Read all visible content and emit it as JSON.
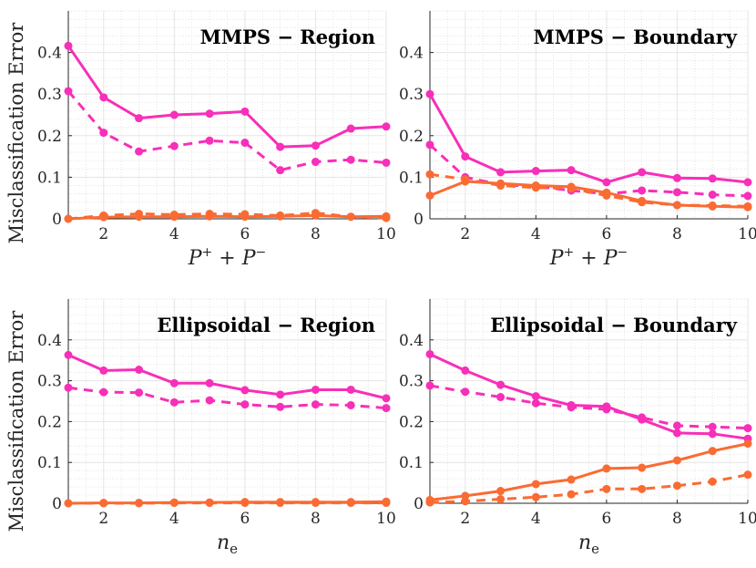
{
  "colors": {
    "pink": "#F72FB9",
    "orange": "#FA6B33",
    "axis": "#262626",
    "grid": "#d9d9d9"
  },
  "ylabel": "Misclassification Error",
  "chart_data": [
    {
      "type": "line",
      "title": "MMPS − Region",
      "xlabel": {
        "main": "P",
        "sup1": "+",
        "plus": " + ",
        "main2": "P",
        "sup2": "−"
      },
      "ylabel": "Misclassification Error",
      "x": [
        1,
        2,
        3,
        4,
        5,
        6,
        7,
        8,
        9,
        10
      ],
      "xticks": [
        "2",
        "4",
        "6",
        "8",
        "10"
      ],
      "yticks": [
        "0",
        "0.1",
        "0.2",
        "0.3",
        "0.4"
      ],
      "xlim": [
        1,
        10
      ],
      "ylim": [
        0,
        0.5
      ],
      "series": [
        {
          "name": "pink-solid",
          "color": "pink",
          "dashed": false,
          "values": [
            0.416,
            0.292,
            0.242,
            0.25,
            0.253,
            0.258,
            0.173,
            0.176,
            0.217,
            0.222
          ]
        },
        {
          "name": "pink-dashed",
          "color": "pink",
          "dashed": true,
          "values": [
            0.307,
            0.207,
            0.162,
            0.175,
            0.188,
            0.183,
            0.117,
            0.137,
            0.142,
            0.135
          ]
        },
        {
          "name": "orange-solid",
          "color": "orange",
          "dashed": false,
          "values": [
            0.0,
            0.004,
            0.005,
            0.005,
            0.006,
            0.005,
            0.006,
            0.008,
            0.005,
            0.006
          ]
        },
        {
          "name": "orange-dashed",
          "color": "orange",
          "dashed": true,
          "values": [
            0.0,
            0.008,
            0.012,
            0.01,
            0.012,
            0.011,
            0.008,
            0.014,
            0.005,
            0.002
          ]
        }
      ]
    },
    {
      "type": "line",
      "title": "MMPS − Boundary",
      "xlabel": {
        "main": "P",
        "sup1": "+",
        "plus": " + ",
        "main2": "P",
        "sup2": "−"
      },
      "ylabel": "",
      "x": [
        1,
        2,
        3,
        4,
        5,
        6,
        7,
        8,
        9,
        10
      ],
      "xticks": [
        "2",
        "4",
        "6",
        "8",
        "10"
      ],
      "yticks": [
        "0",
        "0.1",
        "0.2",
        "0.3",
        "0.4"
      ],
      "xlim": [
        1,
        10
      ],
      "ylim": [
        0,
        0.5
      ],
      "series": [
        {
          "name": "pink-solid",
          "color": "pink",
          "dashed": false,
          "values": [
            0.3,
            0.15,
            0.112,
            0.115,
            0.117,
            0.088,
            0.112,
            0.098,
            0.097,
            0.088
          ]
        },
        {
          "name": "pink-dashed",
          "color": "pink",
          "dashed": true,
          "values": [
            0.178,
            0.1,
            0.082,
            0.078,
            0.068,
            0.06,
            0.068,
            0.064,
            0.058,
            0.055
          ]
        },
        {
          "name": "orange-solid",
          "color": "orange",
          "dashed": false,
          "values": [
            0.056,
            0.09,
            0.085,
            0.08,
            0.077,
            0.063,
            0.043,
            0.033,
            0.03,
            0.028
          ]
        },
        {
          "name": "orange-dashed",
          "color": "orange",
          "dashed": true,
          "values": [
            0.107,
            0.095,
            0.08,
            0.075,
            0.073,
            0.056,
            0.04,
            0.033,
            0.032,
            0.03
          ]
        }
      ]
    },
    {
      "type": "line",
      "title": "Ellipsoidal − Region",
      "xlabel": {
        "main": "n",
        "sub": "e"
      },
      "ylabel": "Misclassification Error",
      "x": [
        1,
        2,
        3,
        4,
        5,
        6,
        7,
        8,
        9,
        10
      ],
      "xticks": [
        "2",
        "4",
        "6",
        "8",
        "10"
      ],
      "yticks": [
        "0",
        "0.1",
        "0.2",
        "0.3",
        "0.4"
      ],
      "xlim": [
        1,
        10
      ],
      "ylim": [
        0,
        0.5
      ],
      "series": [
        {
          "name": "pink-solid",
          "color": "pink",
          "dashed": false,
          "values": [
            0.363,
            0.325,
            0.327,
            0.294,
            0.294,
            0.277,
            0.266,
            0.278,
            0.278,
            0.257
          ]
        },
        {
          "name": "pink-dashed",
          "color": "pink",
          "dashed": true,
          "values": [
            0.283,
            0.272,
            0.271,
            0.247,
            0.252,
            0.242,
            0.236,
            0.242,
            0.24,
            0.233
          ]
        },
        {
          "name": "orange-solid",
          "color": "orange",
          "dashed": false,
          "values": [
            0.0,
            0.001,
            0.001,
            0.002,
            0.002,
            0.003,
            0.003,
            0.003,
            0.003,
            0.004
          ]
        },
        {
          "name": "orange-dashed",
          "color": "orange",
          "dashed": true,
          "values": [
            0.0,
            0.0,
            0.0,
            0.001,
            0.001,
            0.001,
            0.001,
            0.001,
            0.001,
            0.001
          ]
        }
      ]
    },
    {
      "type": "line",
      "title": "Ellipsoidal − Boundary",
      "xlabel": {
        "main": "n",
        "sub": "e"
      },
      "ylabel": "",
      "x": [
        1,
        2,
        3,
        4,
        5,
        6,
        7,
        8,
        9,
        10
      ],
      "xticks": [
        "2",
        "4",
        "6",
        "8",
        "10"
      ],
      "yticks": [
        "0",
        "0.1",
        "0.2",
        "0.3",
        "0.4"
      ],
      "xlim": [
        1,
        10
      ],
      "ylim": [
        0,
        0.5
      ],
      "series": [
        {
          "name": "pink-solid",
          "color": "pink",
          "dashed": false,
          "values": [
            0.365,
            0.325,
            0.29,
            0.262,
            0.24,
            0.237,
            0.205,
            0.172,
            0.17,
            0.158
          ]
        },
        {
          "name": "pink-dashed",
          "color": "pink",
          "dashed": true,
          "values": [
            0.288,
            0.273,
            0.26,
            0.245,
            0.235,
            0.23,
            0.21,
            0.19,
            0.187,
            0.184
          ]
        },
        {
          "name": "orange-solid",
          "color": "orange",
          "dashed": false,
          "values": [
            0.008,
            0.018,
            0.03,
            0.047,
            0.058,
            0.085,
            0.087,
            0.105,
            0.128,
            0.146
          ]
        },
        {
          "name": "orange-dashed",
          "color": "orange",
          "dashed": true,
          "values": [
            0.002,
            0.005,
            0.01,
            0.015,
            0.022,
            0.035,
            0.035,
            0.043,
            0.053,
            0.07
          ]
        }
      ]
    }
  ]
}
